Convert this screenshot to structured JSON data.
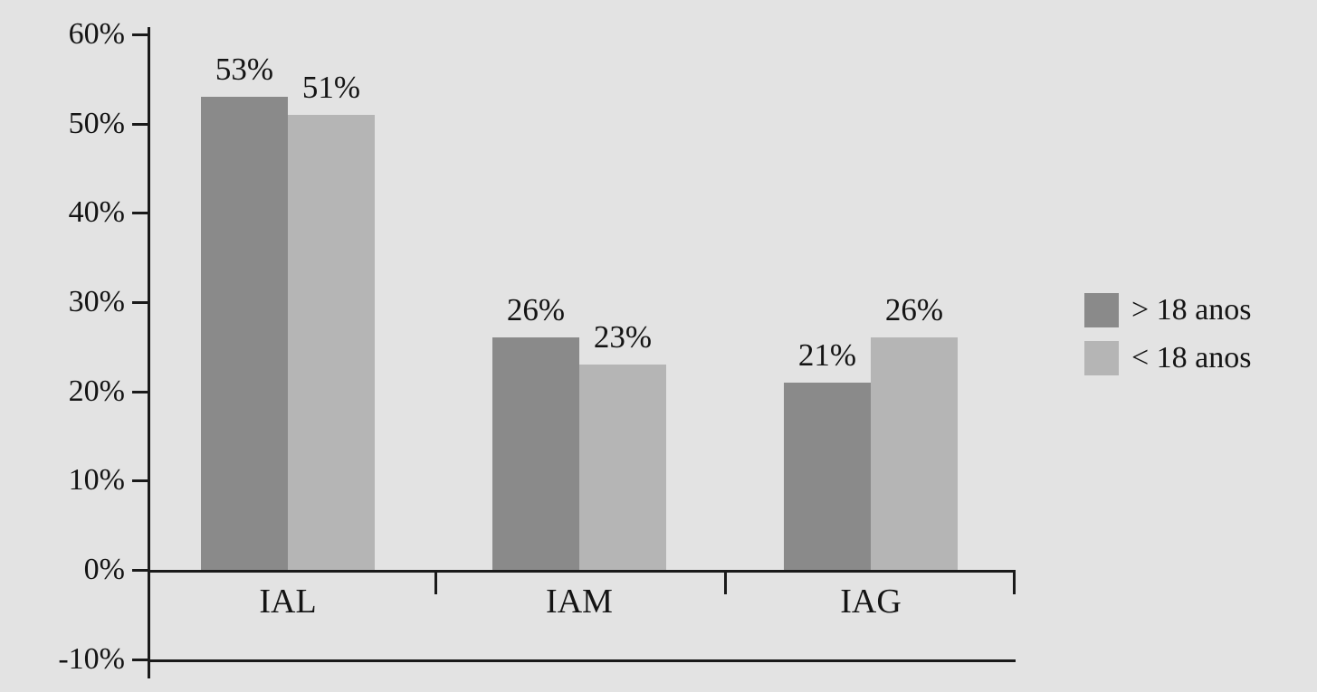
{
  "chart_data": {
    "type": "bar",
    "categories": [
      "IAL",
      "IAM",
      "IAG"
    ],
    "series": [
      {
        "name": "> 18 anos",
        "color": "#8a8a8a",
        "values": [
          53,
          26,
          21
        ]
      },
      {
        "name": "< 18 anos",
        "color": "#b5b5b5",
        "values": [
          51,
          23,
          26
        ]
      }
    ],
    "value_labels": [
      [
        "53%",
        "51%"
      ],
      [
        "26%",
        "23%"
      ],
      [
        "21%",
        "26%"
      ]
    ],
    "y_ticks": [
      60,
      50,
      40,
      30,
      20,
      10,
      0,
      -10
    ],
    "y_tick_labels": [
      "60%",
      "50%",
      "40%",
      "30%",
      "20%",
      "10%",
      "0%",
      "-10%"
    ],
    "ylim": [
      -10,
      60
    ],
    "grid": false,
    "legend_position": "right",
    "background": "#e3e3e3",
    "axis_color": "#1a1a1a"
  }
}
